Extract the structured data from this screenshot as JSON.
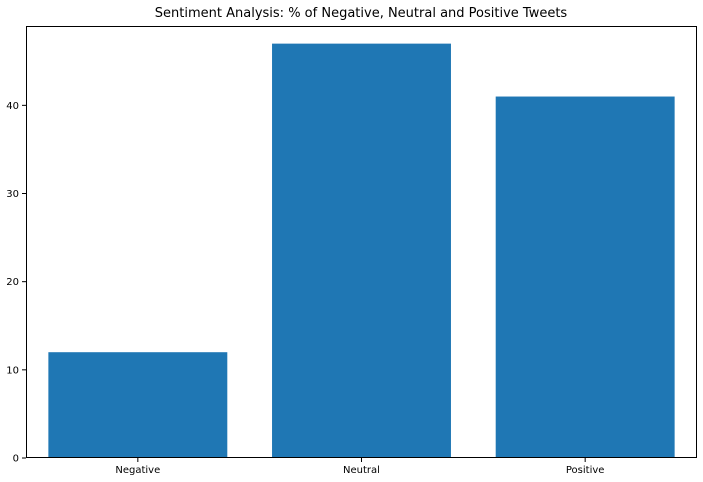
{
  "chart_data": {
    "type": "bar",
    "title": "Sentiment Analysis: % of Negative, Neutral and Positive Tweets",
    "categories": [
      "Negative",
      "Neutral",
      "Positive"
    ],
    "values": [
      12,
      47,
      41
    ],
    "xlabel": "",
    "ylabel": "",
    "ylim": [
      0,
      49
    ],
    "yticks": [
      0,
      10,
      20,
      30,
      40
    ],
    "grid": false,
    "bar_color": "#1f77b4"
  }
}
